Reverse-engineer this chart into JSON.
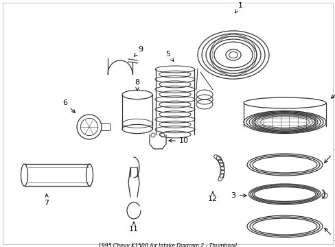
{
  "title": "1995 Chevy K1500 Air Intake Diagram 2 - Thumbnail",
  "background_color": "#ffffff",
  "line_color": "#333333",
  "fig_width": 4.89,
  "fig_height": 3.6,
  "dpi": 100
}
